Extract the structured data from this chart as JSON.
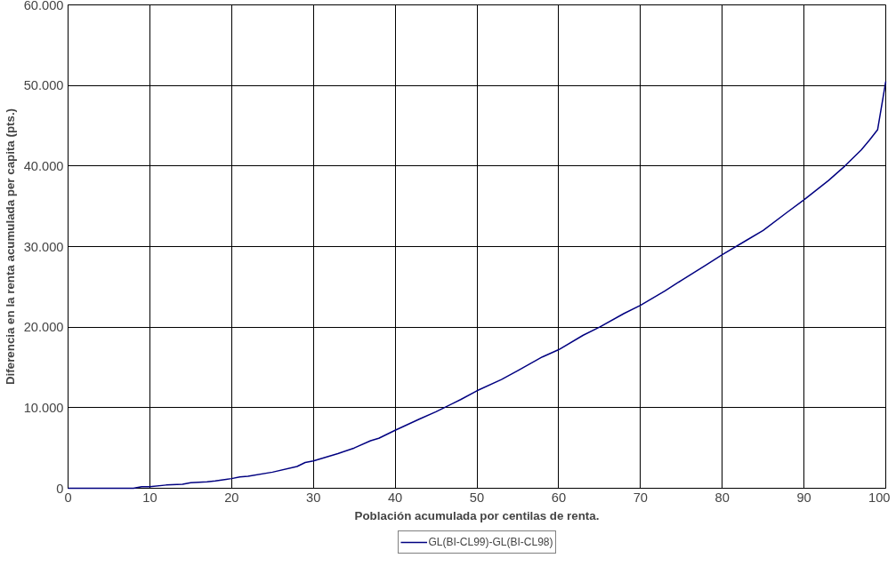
{
  "chart_data": {
    "type": "line",
    "xlabel": "Población acumulada por centilas de renta.",
    "ylabel": "Diferencia en la renta acumulada per capita (pts.)",
    "x": [
      0,
      2,
      4,
      6,
      8,
      9,
      10,
      12,
      14,
      15,
      17,
      18,
      20,
      21,
      22,
      25,
      28,
      29,
      30,
      31,
      33,
      35,
      37,
      38,
      40,
      43,
      45,
      48,
      50,
      53,
      55,
      58,
      60,
      63,
      65,
      68,
      70,
      73,
      75,
      78,
      80,
      83,
      85,
      88,
      90,
      93,
      95,
      97,
      98,
      99,
      100
    ],
    "series": [
      {
        "name": "GL(BI-CL99)-GL(BI-CL98)",
        "color": "#000080",
        "values": [
          0,
          0,
          0,
          0,
          0,
          200,
          200,
          400,
          500,
          700,
          800,
          900,
          1200,
          1400,
          1500,
          2000,
          2700,
          3200,
          3400,
          3700,
          4300,
          5000,
          5900,
          6200,
          7200,
          8600,
          9500,
          11000,
          12100,
          13500,
          14600,
          16300,
          17200,
          19000,
          20000,
          21700,
          22700,
          24500,
          25800,
          27700,
          29000,
          30800,
          32000,
          34300,
          35800,
          38200,
          40000,
          42000,
          43200,
          44500,
          50500
        ]
      }
    ],
    "xlim": [
      0,
      100
    ],
    "xticks": [
      0,
      10,
      20,
      30,
      40,
      50,
      60,
      70,
      80,
      90,
      100
    ],
    "ylim": [
      0,
      60000
    ],
    "yticks": [
      {
        "value": 0,
        "label": "0"
      },
      {
        "value": 10000,
        "label": "10.000"
      },
      {
        "value": 20000,
        "label": "20.000"
      },
      {
        "value": 30000,
        "label": "30.000"
      },
      {
        "value": 40000,
        "label": "40.000"
      },
      {
        "value": 50000,
        "label": "50.000"
      },
      {
        "value": 60000,
        "label": "60.000"
      }
    ],
    "grid": true,
    "legend": "bottom",
    "line_style": "solid",
    "marker": "none"
  }
}
